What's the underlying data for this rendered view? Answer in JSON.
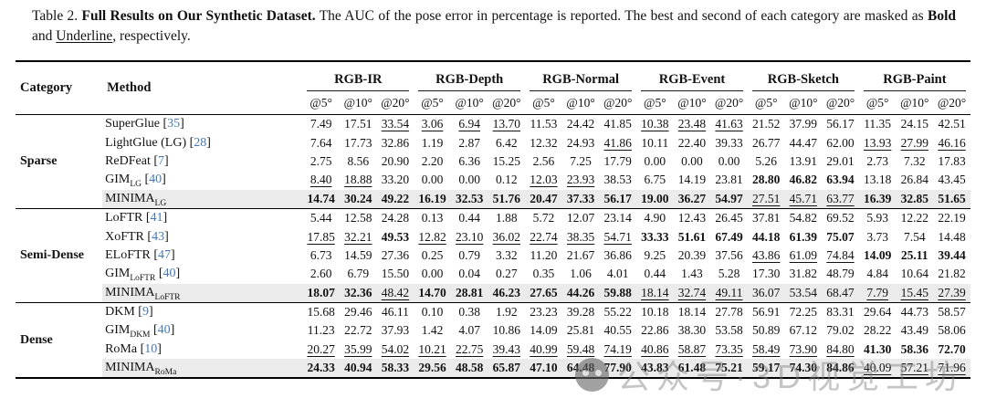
{
  "caption": {
    "prefix": "Table 2. ",
    "title": "Full Results on Our Synthetic Dataset.",
    "body": " The AUC of the pose error in percentage is reported. The best and second of each category are masked as ",
    "bold_word": "Bold",
    "and_text": " and ",
    "underline_word": "Underline",
    "suffix": ", respectively."
  },
  "watermark": {
    "text": "公众号·3D视觉工坊",
    "logo": "wechat-account-logo"
  },
  "table": {
    "category_header": "Category",
    "method_header": "Method",
    "groups": [
      "RGB-IR",
      "RGB-Depth",
      "RGB-Normal",
      "RGB-Event",
      "RGB-Sketch",
      "RGB-Paint"
    ],
    "thresholds": [
      "@5°",
      "@10°",
      "@20°"
    ],
    "highlight_color": "#ebebeb",
    "citation_color": "#4379b8",
    "legend": {
      "best": "bold",
      "second": "underline"
    },
    "sections": [
      {
        "category": "Sparse",
        "rows": [
          {
            "method": "SuperGlue",
            "sub": "",
            "cite": "35",
            "highlight": false,
            "values": [
              "7.49",
              "17.51",
              "33.54",
              "3.06",
              "6.94",
              "13.70",
              "11.53",
              "24.42",
              "41.85",
              "10.38",
              "23.48",
              "41.63",
              "21.52",
              "37.99",
              "56.17",
              "11.35",
              "24.15",
              "42.51"
            ],
            "styles": [
              "",
              "",
              "u",
              "u",
              "u",
              "u",
              "",
              "",
              "",
              "u",
              "u",
              "u",
              "",
              "",
              "",
              "",
              "",
              ""
            ]
          },
          {
            "method": "LightGlue (LG)",
            "sub": "",
            "cite": "28",
            "highlight": false,
            "values": [
              "7.64",
              "17.73",
              "32.86",
              "1.19",
              "2.87",
              "6.42",
              "12.32",
              "24.93",
              "41.86",
              "10.11",
              "22.40",
              "39.33",
              "26.77",
              "44.47",
              "62.00",
              "13.93",
              "27.99",
              "46.16"
            ],
            "styles": [
              "",
              "",
              "",
              "",
              "",
              "",
              "",
              "",
              "u",
              "",
              "",
              "",
              "",
              "",
              "",
              "u",
              "u",
              "u"
            ]
          },
          {
            "method": "ReDFeat",
            "sub": "",
            "cite": "7",
            "highlight": false,
            "values": [
              "2.75",
              "8.56",
              "20.90",
              "2.20",
              "6.36",
              "15.25",
              "2.56",
              "7.25",
              "17.79",
              "0.00",
              "0.00",
              "0.00",
              "5.26",
              "13.91",
              "29.01",
              "2.73",
              "7.32",
              "17.83"
            ],
            "styles": [
              "",
              "",
              "",
              "",
              "",
              "",
              "",
              "",
              "",
              "",
              "",
              "",
              "",
              "",
              "",
              "",
              "",
              ""
            ]
          },
          {
            "method": "GIM",
            "sub": "LG",
            "cite": "40",
            "highlight": false,
            "values": [
              "8.40",
              "18.88",
              "33.20",
              "0.00",
              "0.00",
              "0.12",
              "12.03",
              "23.93",
              "38.53",
              "6.75",
              "14.19",
              "23.81",
              "28.80",
              "46.82",
              "63.94",
              "13.18",
              "26.84",
              "43.45"
            ],
            "styles": [
              "u",
              "u",
              "",
              "",
              "",
              "",
              "u",
              "u",
              "",
              "",
              "",
              "",
              "b",
              "b",
              "b",
              "",
              "",
              ""
            ]
          },
          {
            "method": "MINIMA",
            "sub": "LG",
            "cite": null,
            "highlight": true,
            "values": [
              "14.74",
              "30.24",
              "49.22",
              "16.19",
              "32.53",
              "51.76",
              "20.47",
              "37.33",
              "56.17",
              "19.00",
              "36.27",
              "54.97",
              "27.51",
              "45.71",
              "63.77",
              "16.39",
              "32.85",
              "51.65"
            ],
            "styles": [
              "b",
              "b",
              "b",
              "b",
              "b",
              "b",
              "b",
              "b",
              "b",
              "b",
              "b",
              "b",
              "u",
              "u",
              "u",
              "b",
              "b",
              "b"
            ]
          }
        ]
      },
      {
        "category": "Semi-Dense",
        "rows": [
          {
            "method": "LoFTR",
            "sub": "",
            "cite": "41",
            "highlight": false,
            "values": [
              "5.44",
              "12.58",
              "24.28",
              "0.13",
              "0.44",
              "1.88",
              "5.72",
              "12.07",
              "23.14",
              "4.90",
              "12.43",
              "26.45",
              "37.81",
              "54.82",
              "69.52",
              "5.93",
              "12.22",
              "22.19"
            ],
            "styles": [
              "",
              "",
              "",
              "",
              "",
              "",
              "",
              "",
              "",
              "",
              "",
              "",
              "",
              "",
              "",
              "",
              "",
              ""
            ]
          },
          {
            "method": "XoFTR",
            "sub": "",
            "cite": "43",
            "highlight": false,
            "values": [
              "17.85",
              "32.21",
              "49.53",
              "12.82",
              "23.10",
              "36.02",
              "22.74",
              "38.35",
              "54.71",
              "33.33",
              "51.61",
              "67.49",
              "44.18",
              "61.39",
              "75.07",
              "3.73",
              "7.54",
              "14.48"
            ],
            "styles": [
              "u",
              "u",
              "b",
              "u",
              "u",
              "u",
              "u",
              "u",
              "u",
              "b",
              "b",
              "b",
              "b",
              "b",
              "b",
              "",
              "",
              ""
            ]
          },
          {
            "method": "ELoFTR",
            "sub": "",
            "cite": "47",
            "highlight": false,
            "values": [
              "6.73",
              "14.59",
              "27.36",
              "0.25",
              "0.79",
              "3.32",
              "11.20",
              "21.67",
              "36.86",
              "9.25",
              "20.39",
              "37.56",
              "43.86",
              "61.09",
              "74.84",
              "14.09",
              "25.11",
              "39.44"
            ],
            "styles": [
              "",
              "",
              "",
              "",
              "",
              "",
              "",
              "",
              "",
              "",
              "",
              "",
              "u",
              "u",
              "u",
              "b",
              "b",
              "b"
            ]
          },
          {
            "method": "GIM",
            "sub": "LoFTR",
            "cite": "40",
            "highlight": false,
            "values": [
              "2.60",
              "6.79",
              "15.50",
              "0.00",
              "0.04",
              "0.27",
              "0.35",
              "1.06",
              "4.01",
              "0.44",
              "1.43",
              "5.28",
              "17.30",
              "31.82",
              "48.79",
              "4.84",
              "10.64",
              "21.82"
            ],
            "styles": [
              "",
              "",
              "",
              "",
              "",
              "",
              "",
              "",
              "",
              "",
              "",
              "",
              "",
              "",
              "",
              "",
              "",
              ""
            ]
          },
          {
            "method": "MINIMA",
            "sub": "LoFTR",
            "cite": null,
            "highlight": true,
            "values": [
              "18.07",
              "32.36",
              "48.42",
              "14.70",
              "28.81",
              "46.23",
              "27.65",
              "44.26",
              "59.88",
              "18.14",
              "32.74",
              "49.11",
              "36.07",
              "53.54",
              "68.47",
              "7.79",
              "15.45",
              "27.39"
            ],
            "styles": [
              "b",
              "b",
              "u",
              "b",
              "b",
              "b",
              "b",
              "b",
              "b",
              "u",
              "u",
              "u",
              "",
              "",
              "",
              "u",
              "u",
              "u"
            ]
          }
        ]
      },
      {
        "category": "Dense",
        "rows": [
          {
            "method": "DKM",
            "sub": "",
            "cite": "9",
            "highlight": false,
            "values": [
              "15.68",
              "29.46",
              "46.11",
              "0.10",
              "0.38",
              "1.92",
              "23.23",
              "39.28",
              "55.22",
              "10.18",
              "18.14",
              "27.78",
              "56.91",
              "72.25",
              "83.31",
              "29.64",
              "44.73",
              "58.57"
            ],
            "styles": [
              "",
              "",
              "",
              "",
              "",
              "",
              "",
              "",
              "",
              "",
              "",
              "",
              "",
              "",
              "",
              "",
              "",
              ""
            ]
          },
          {
            "method": "GIM",
            "sub": "DKM",
            "cite": "40",
            "highlight": false,
            "values": [
              "11.23",
              "22.72",
              "37.93",
              "1.42",
              "4.07",
              "10.86",
              "14.09",
              "25.81",
              "40.55",
              "22.86",
              "38.30",
              "53.58",
              "50.89",
              "67.12",
              "79.02",
              "28.22",
              "43.49",
              "58.06"
            ],
            "styles": [
              "",
              "",
              "",
              "",
              "",
              "",
              "",
              "",
              "",
              "",
              "",
              "",
              "",
              "",
              "",
              "",
              "",
              ""
            ]
          },
          {
            "method": "RoMa",
            "sub": "",
            "cite": "10",
            "highlight": false,
            "values": [
              "20.27",
              "35.99",
              "54.02",
              "10.21",
              "22.75",
              "39.43",
              "40.99",
              "59.48",
              "74.19",
              "40.86",
              "58.87",
              "73.35",
              "58.49",
              "73.90",
              "84.80",
              "41.30",
              "58.36",
              "72.70"
            ],
            "styles": [
              "u",
              "u",
              "u",
              "u",
              "u",
              "u",
              "u",
              "u",
              "u",
              "u",
              "u",
              "u",
              "u",
              "u",
              "u",
              "b",
              "b",
              "b"
            ]
          },
          {
            "method": "MINIMA",
            "sub": "RoMa",
            "cite": null,
            "highlight": true,
            "values": [
              "24.33",
              "40.94",
              "58.33",
              "29.56",
              "48.58",
              "65.87",
              "47.10",
              "64.48",
              "77.90",
              "43.83",
              "61.48",
              "75.21",
              "59.17",
              "74.30",
              "84.86",
              "40.09",
              "57.21",
              "71.96"
            ],
            "styles": [
              "b",
              "b",
              "b",
              "b",
              "b",
              "b",
              "b",
              "b",
              "b",
              "b",
              "b",
              "b",
              "b",
              "b",
              "b",
              "u",
              "u",
              "u"
            ]
          }
        ]
      }
    ]
  }
}
